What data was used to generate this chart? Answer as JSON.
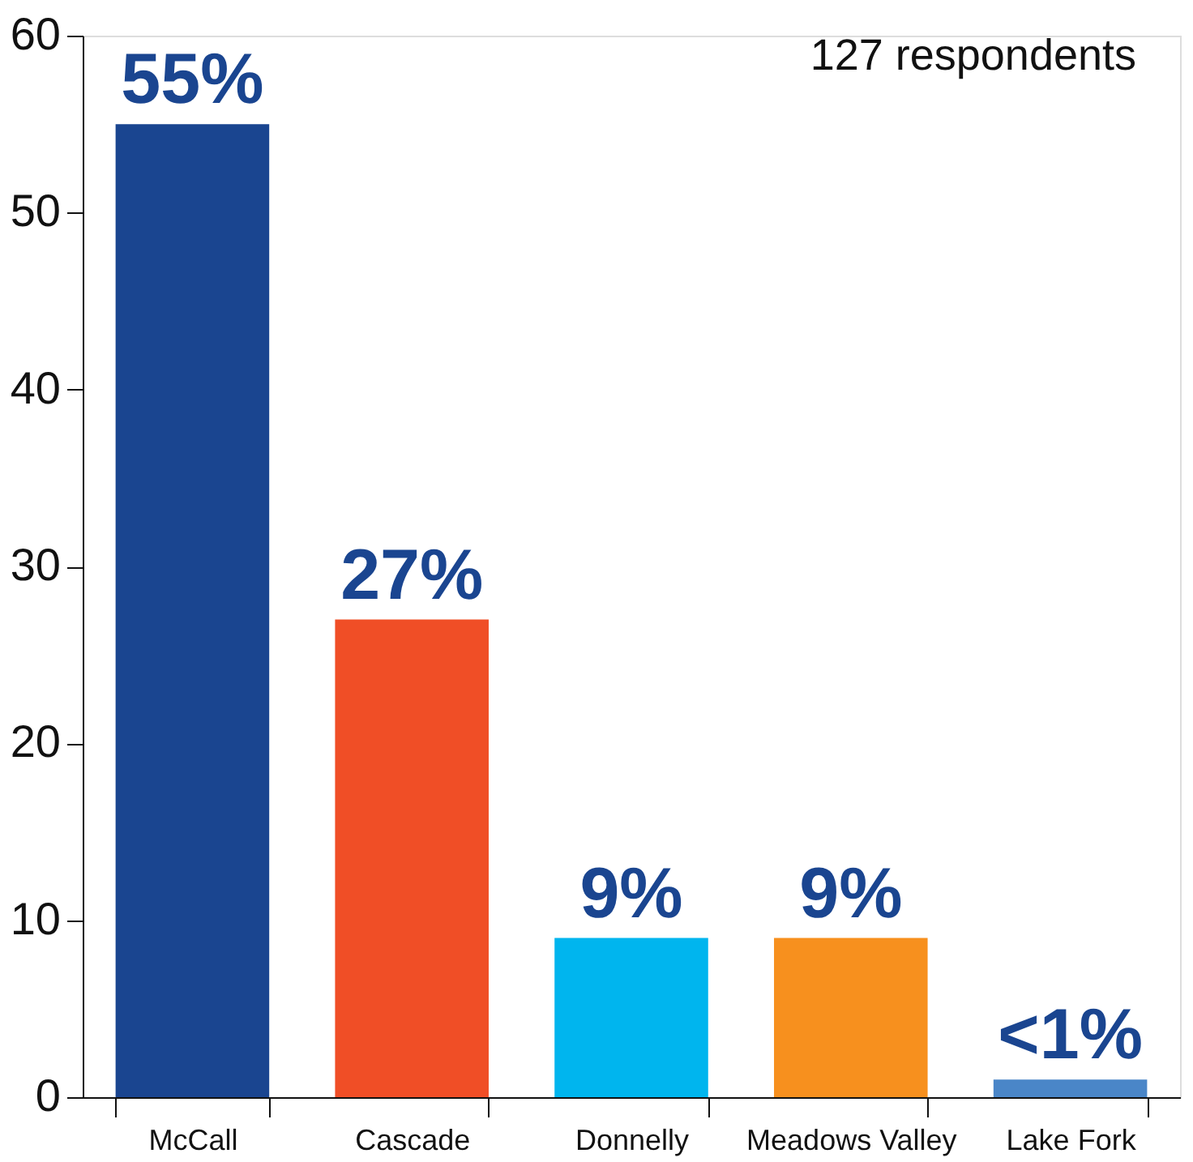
{
  "chart_data": {
    "type": "bar",
    "categories": [
      "McCall",
      "Cascade",
      "Donnelly",
      "Meadows Valley",
      "Lake Fork"
    ],
    "values": [
      55,
      27,
      9,
      9,
      1
    ],
    "colors": [
      "#1a4590",
      "#f04e26",
      "#00b5ee",
      "#f7901e",
      "#4a86c8"
    ],
    "value_labels": [
      "55%",
      "27%",
      "9%",
      "9%",
      "<1%"
    ],
    "ylim": [
      0,
      60
    ],
    "yticks": [
      0,
      10,
      20,
      30,
      40,
      50,
      60
    ],
    "grid": false,
    "annotations": [
      "127 respondents"
    ]
  }
}
